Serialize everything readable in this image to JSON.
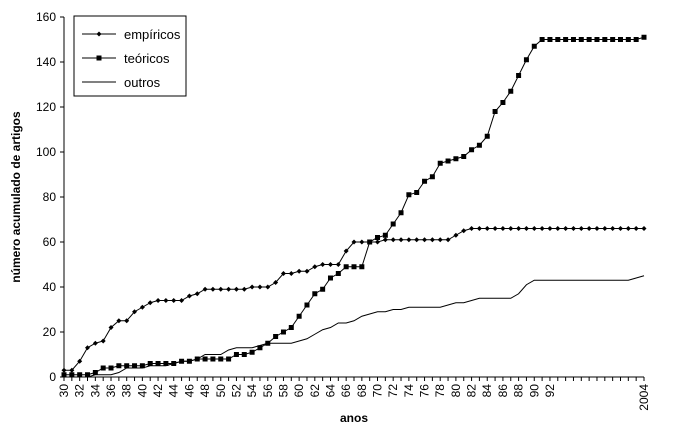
{
  "chart_data": {
    "type": "line",
    "title": "",
    "xlabel": "anos",
    "ylabel": "número acumulado de artigos",
    "ylim": [
      0,
      160
    ],
    "yticks": [
      0,
      20,
      40,
      60,
      80,
      100,
      120,
      140,
      160
    ],
    "xlim": [
      1930,
      2004
    ],
    "xtick_values": [
      1930,
      1932,
      1934,
      1936,
      1938,
      1940,
      1942,
      1944,
      1946,
      1948,
      1950,
      1952,
      1954,
      1956,
      1958,
      1960,
      1962,
      1964,
      1966,
      1968,
      1970,
      1972,
      1974,
      1976,
      1978,
      1980,
      1982,
      1984,
      1986,
      1988,
      1990,
      1992,
      2004
    ],
    "xtick_labels": [
      "30",
      "32",
      "34",
      "36",
      "38",
      "40",
      "42",
      "44",
      "46",
      "48",
      "50",
      "52",
      "54",
      "56",
      "58",
      "60",
      "62",
      "64",
      "66",
      "68",
      "70",
      "72",
      "74",
      "76",
      "78",
      "80",
      "82",
      "84",
      "86",
      "88",
      "90",
      "92",
      "2004"
    ],
    "grid": false,
    "legend_position": "top-left",
    "x": [
      1930,
      1931,
      1932,
      1933,
      1934,
      1935,
      1936,
      1937,
      1938,
      1939,
      1940,
      1941,
      1942,
      1943,
      1944,
      1945,
      1946,
      1947,
      1948,
      1949,
      1950,
      1951,
      1952,
      1953,
      1954,
      1955,
      1956,
      1957,
      1958,
      1959,
      1960,
      1961,
      1962,
      1963,
      1964,
      1965,
      1966,
      1967,
      1968,
      1969,
      1970,
      1971,
      1972,
      1973,
      1974,
      1975,
      1976,
      1977,
      1978,
      1979,
      1980,
      1981,
      1982,
      1983,
      1984,
      1985,
      1986,
      1987,
      1988,
      1989,
      1990,
      1991,
      1992,
      1993,
      1994,
      1995,
      1996,
      1997,
      1998,
      1999,
      2000,
      2001,
      2002,
      2003,
      2004
    ],
    "series": [
      {
        "name": "empíricos",
        "color": "#000000",
        "marker": "diamond",
        "values": [
          3,
          3,
          7,
          13,
          15,
          16,
          22,
          25,
          25,
          29,
          31,
          33,
          34,
          34,
          34,
          34,
          36,
          37,
          39,
          39,
          39,
          39,
          39,
          39,
          40,
          40,
          40,
          42,
          46,
          46,
          47,
          47,
          49,
          50,
          50,
          50,
          56,
          60,
          60,
          60,
          60,
          61,
          61,
          61,
          61,
          61,
          61,
          61,
          61,
          61,
          63,
          65,
          66,
          66,
          66,
          66,
          66,
          66,
          66,
          66,
          66,
          66,
          66,
          66,
          66,
          66,
          66,
          66,
          66,
          66,
          66,
          66,
          66,
          66,
          66
        ]
      },
      {
        "name": "teóricos",
        "color": "#000000",
        "marker": "square",
        "values": [
          1,
          1,
          1,
          1,
          2,
          4,
          4,
          5,
          5,
          5,
          5,
          6,
          6,
          6,
          6,
          7,
          7,
          8,
          8,
          8,
          8,
          8,
          10,
          10,
          11,
          13,
          15,
          18,
          20,
          22,
          27,
          32,
          37,
          39,
          44,
          46,
          49,
          49,
          49,
          60,
          62,
          63,
          68,
          73,
          81,
          82,
          87,
          89,
          95,
          96,
          97,
          98,
          101,
          103,
          107,
          118,
          122,
          127,
          134,
          141,
          147,
          150,
          150,
          150,
          150,
          150,
          150,
          150,
          150,
          150,
          150,
          150,
          150,
          150,
          151
        ]
      },
      {
        "name": "outros",
        "color": "#000000",
        "marker": "none",
        "values": [
          0,
          0,
          0,
          0,
          1,
          1,
          1,
          2,
          4,
          4,
          4,
          5,
          5,
          5,
          6,
          7,
          7,
          8,
          10,
          10,
          10,
          12,
          13,
          13,
          13,
          14,
          15,
          15,
          15,
          15,
          16,
          17,
          19,
          21,
          22,
          24,
          24,
          25,
          27,
          28,
          29,
          29,
          30,
          30,
          31,
          31,
          31,
          31,
          31,
          32,
          33,
          33,
          34,
          35,
          35,
          35,
          35,
          35,
          37,
          41,
          43,
          43,
          43,
          43,
          43,
          43,
          43,
          43,
          43,
          43,
          43,
          43,
          43,
          44,
          45
        ]
      }
    ]
  }
}
